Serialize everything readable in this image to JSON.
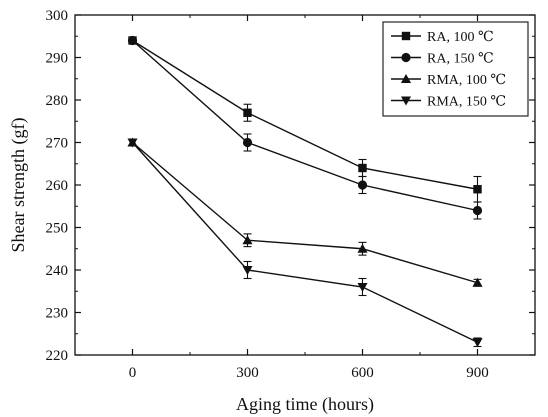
{
  "chart_data": {
    "type": "line",
    "title": "",
    "xlabel": "Aging time (hours)",
    "ylabel": "Shear strength (gf)",
    "x": [
      0,
      300,
      600,
      900
    ],
    "x_ticks": [
      0,
      300,
      600,
      900
    ],
    "y_ticks": [
      220,
      230,
      240,
      250,
      260,
      270,
      280,
      290,
      300
    ],
    "xlim": [
      -150,
      1050
    ],
    "ylim": [
      220,
      300
    ],
    "grid": false,
    "legend_position": "top-right",
    "series": [
      {
        "name": "RA, 100 ℃",
        "marker": "square",
        "values": [
          294,
          277,
          264,
          259
        ],
        "errors": [
          0,
          2,
          2,
          3
        ]
      },
      {
        "name": "RA, 150 ℃",
        "marker": "circle",
        "values": [
          294,
          270,
          260,
          254
        ],
        "errors": [
          0,
          2,
          2,
          2
        ]
      },
      {
        "name": "RMA, 100 ℃",
        "marker": "triangle-up",
        "values": [
          270,
          247,
          245,
          237
        ],
        "errors": [
          0.6,
          1.5,
          1.5,
          0.8
        ]
      },
      {
        "name": "RMA, 150 ℃",
        "marker": "triangle-down",
        "values": [
          270,
          240,
          236,
          223
        ],
        "errors": [
          0.6,
          2,
          2,
          1
        ]
      }
    ]
  }
}
